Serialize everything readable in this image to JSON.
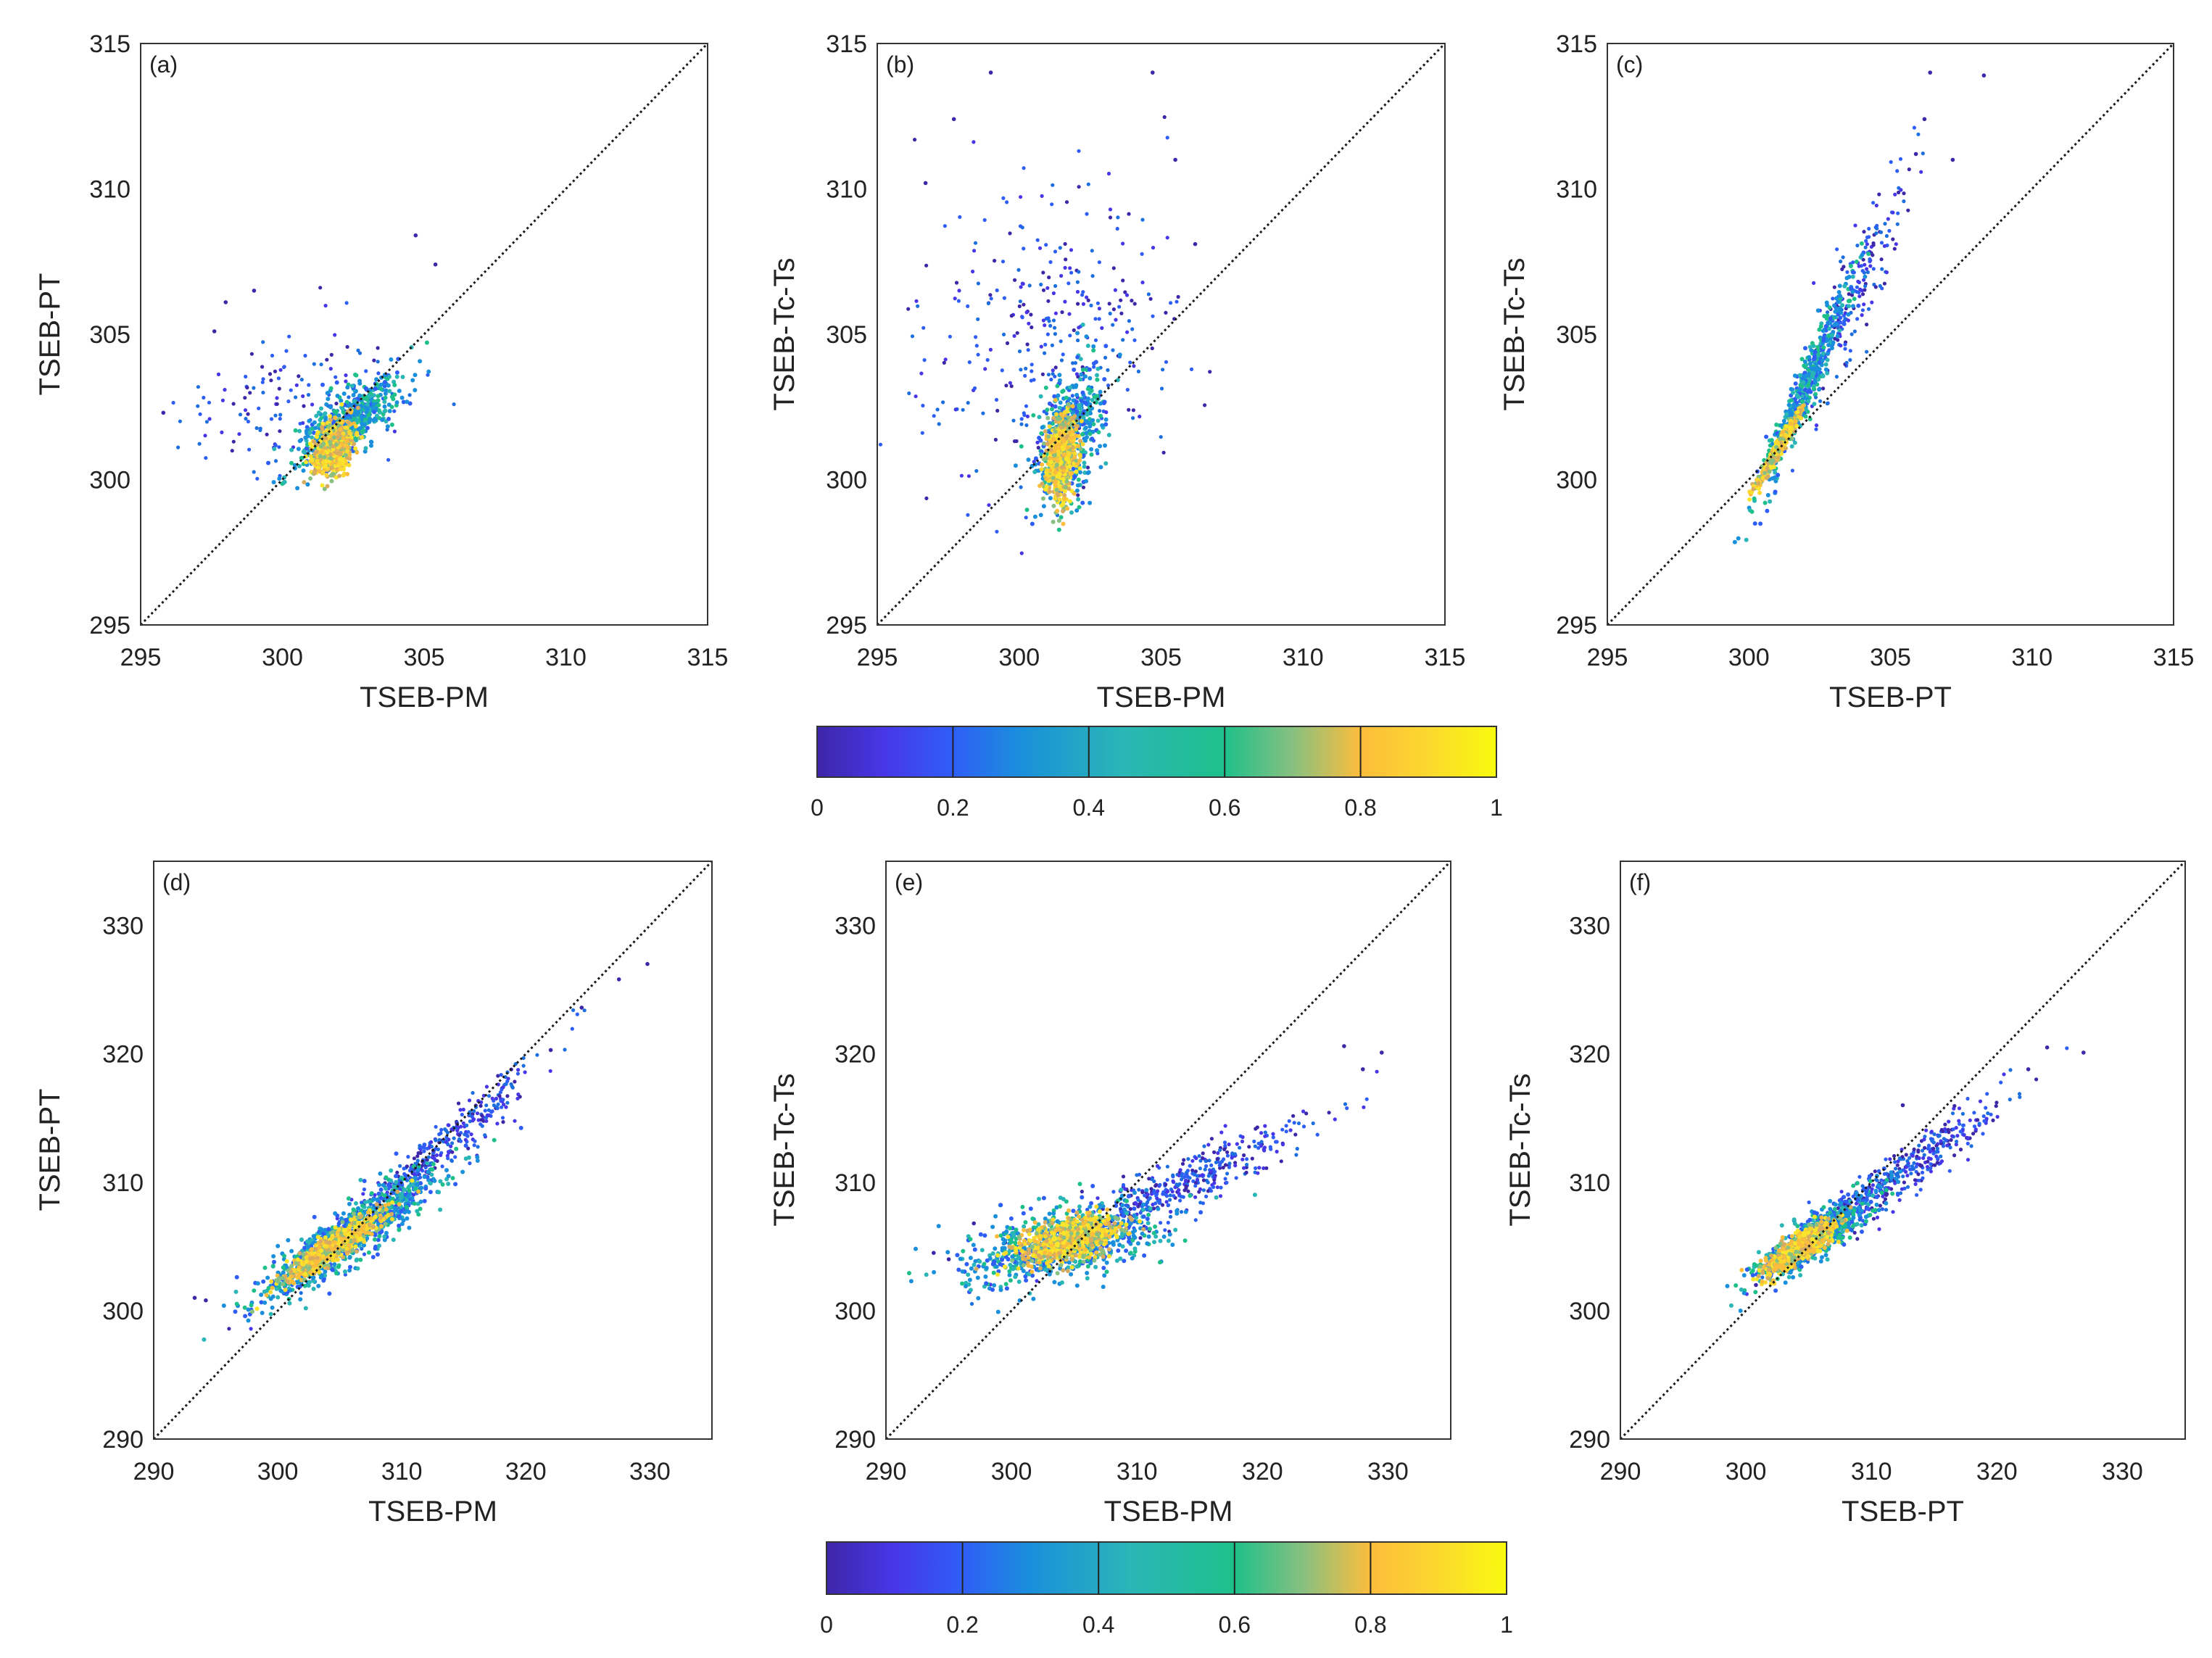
{
  "colors": {
    "colormap": [
      "#3e26a8",
      "#2f5ef7",
      "#1a8fdb",
      "#2ab6b6",
      "#1ec08a",
      "#87c080",
      "#d8ac60",
      "#fdbd3c",
      "#fbd82e",
      "#f9fb0e"
    ],
    "diagonal": "#1a1a1a",
    "axis": "#333333"
  },
  "colorbars": [
    {
      "ticks": [
        "0",
        "0.2",
        "0.4",
        "0.6",
        "0.8",
        "1"
      ],
      "range": [
        0,
        1
      ]
    },
    {
      "ticks": [
        "0",
        "0.2",
        "0.4",
        "0.6",
        "0.8",
        "1"
      ],
      "range": [
        0,
        1
      ]
    }
  ],
  "chart_data": [
    {
      "type": "scatter",
      "panel": "(a)",
      "xlabel": "TSEB-PM",
      "ylabel": "TSEB-PT",
      "xlim": [
        295,
        315
      ],
      "ylim": [
        295,
        315
      ],
      "xticks": [
        "295",
        "300",
        "305",
        "310",
        "315"
      ],
      "yticks": [
        "295",
        "300",
        "305",
        "310",
        "315"
      ],
      "one_to_one_line": true,
      "density_color_scale": [
        0,
        1
      ],
      "clusters": [
        {
          "center": [
            301.8,
            301.1
          ],
          "spread": [
            0.35,
            0.45
          ],
          "rho": 0.3,
          "n": 650,
          "density": "high"
        },
        {
          "center": [
            302.3,
            302.0
          ],
          "spread": [
            0.9,
            0.8
          ],
          "rho": 0.75,
          "n": 550,
          "density": "mid"
        },
        {
          "center": [
            300.5,
            302.8
          ],
          "spread": [
            2.0,
            1.3
          ],
          "rho": 0.2,
          "n": 140,
          "density": "low"
        }
      ],
      "outliers": [
        [
          304.7,
          308.4
        ],
        [
          305.4,
          307.4
        ],
        [
          299.0,
          306.5
        ],
        [
          298.0,
          306.1
        ],
        [
          295.8,
          302.3
        ],
        [
          297.6,
          305.1
        ]
      ]
    },
    {
      "type": "scatter",
      "panel": "(b)",
      "xlabel": "TSEB-PM",
      "ylabel": "TSEB-Tc-Ts",
      "xlim": [
        295,
        315
      ],
      "ylim": [
        295,
        315
      ],
      "xticks": [
        "295",
        "300",
        "305",
        "310",
        "315"
      ],
      "yticks": [
        "295",
        "300",
        "305",
        "310",
        "315"
      ],
      "one_to_one_line": true,
      "density_color_scale": [
        0,
        1
      ],
      "clusters": [
        {
          "center": [
            301.5,
            300.8
          ],
          "spread": [
            0.25,
            0.7
          ],
          "rho": 0.2,
          "n": 650,
          "density": "high"
        },
        {
          "center": [
            301.8,
            301.5
          ],
          "spread": [
            0.6,
            1.2
          ],
          "rho": 0.4,
          "n": 500,
          "density": "mid"
        },
        {
          "center": [
            301.0,
            304.8
          ],
          "spread": [
            2.3,
            2.6
          ],
          "rho": 0.1,
          "n": 320,
          "density": "low"
        }
      ],
      "outliers": [
        [
          299.0,
          314.0
        ],
        [
          304.7,
          314.0
        ],
        [
          297.7,
          312.4
        ],
        [
          296.7,
          310.2
        ],
        [
          305.5,
          311.0
        ],
        [
          306.2,
          308.1
        ]
      ]
    },
    {
      "type": "scatter",
      "panel": "(c)",
      "xlabel": "TSEB-PT",
      "ylabel": "TSEB-Tc-Ts",
      "xlim": [
        295,
        315
      ],
      "ylim": [
        295,
        315
      ],
      "xticks": [
        "295",
        "300",
        "305",
        "310",
        "315"
      ],
      "yticks": [
        "295",
        "300",
        "305",
        "310",
        "315"
      ],
      "one_to_one_line": true,
      "density_color_scale": [
        0,
        1
      ],
      "ridge": {
        "x_start": 300.3,
        "y_start": 299.6,
        "x_end": 306.3,
        "y_end": 312.4
      },
      "clusters": [
        {
          "center": [
            301.0,
            301.0
          ],
          "spread": [
            0.35,
            0.6
          ],
          "rho": 0.97,
          "n": 600,
          "density": "high"
        },
        {
          "center": [
            302.0,
            303.2
          ],
          "spread": [
            0.8,
            1.8
          ],
          "rho": 0.96,
          "n": 500,
          "density": "mid"
        },
        {
          "center": [
            303.8,
            306.5
          ],
          "spread": [
            1.0,
            2.2
          ],
          "rho": 0.9,
          "n": 200,
          "density": "low"
        }
      ],
      "outliers": [
        [
          306.4,
          314.0
        ],
        [
          308.3,
          313.9
        ],
        [
          306.2,
          312.4
        ],
        [
          307.2,
          311.0
        ],
        [
          305.9,
          311.2
        ]
      ]
    },
    {
      "type": "scatter",
      "panel": "(d)",
      "xlabel": "TSEB-PM",
      "ylabel": "TSEB-PT",
      "xlim": [
        290,
        335
      ],
      "ylim": [
        290,
        335
      ],
      "xticks": [
        "290",
        "300",
        "310",
        "320",
        "330"
      ],
      "yticks": [
        "290",
        "300",
        "310",
        "320",
        "330"
      ],
      "one_to_one_line": true,
      "density_color_scale": [
        0,
        1
      ],
      "clusters": [
        {
          "center": [
            304.5,
            305.0
          ],
          "spread": [
            2.0,
            1.4
          ],
          "rho": 0.92,
          "n": 700,
          "density": "high"
        },
        {
          "center": [
            306.0,
            306.0
          ],
          "spread": [
            3.6,
            2.6
          ],
          "rho": 0.9,
          "n": 800,
          "density": "mid"
        },
        {
          "center": [
            311.5,
            311.0
          ],
          "spread": [
            4.5,
            4.0
          ],
          "rho": 0.97,
          "n": 450,
          "density": "low"
        }
      ],
      "outliers": [
        [
          329.8,
          327.0
        ],
        [
          327.5,
          325.8
        ],
        [
          324.5,
          323.6
        ],
        [
          293.3,
          301.0
        ],
        [
          294.2,
          300.8
        ],
        [
          322.0,
          320.3
        ]
      ]
    },
    {
      "type": "scatter",
      "panel": "(e)",
      "xlabel": "TSEB-PM",
      "ylabel": "TSEB-Tc-Ts",
      "xlim": [
        290,
        335
      ],
      "ylim": [
        290,
        335
      ],
      "xticks": [
        "290",
        "300",
        "310",
        "320",
        "330"
      ],
      "yticks": [
        "290",
        "300",
        "310",
        "320",
        "330"
      ],
      "one_to_one_line": true,
      "density_color_scale": [
        0,
        1
      ],
      "clusters": [
        {
          "center": [
            304.5,
            305.5
          ],
          "spread": [
            2.0,
            0.9
          ],
          "rho": 0.5,
          "n": 700,
          "density": "high"
        },
        {
          "center": [
            304.0,
            305.3
          ],
          "spread": [
            4.0,
            1.6
          ],
          "rho": 0.5,
          "n": 700,
          "density": "mid"
        },
        {
          "center": [
            313.0,
            309.5
          ],
          "spread": [
            5.0,
            2.5
          ],
          "rho": 0.9,
          "n": 450,
          "density": "low"
        }
      ],
      "outliers": [
        [
          329.5,
          320.1
        ],
        [
          328.0,
          318.8
        ],
        [
          326.5,
          320.6
        ],
        [
          293.8,
          304.5
        ],
        [
          295.0,
          304.0
        ],
        [
          297.0,
          306.8
        ]
      ]
    },
    {
      "type": "scatter",
      "panel": "(f)",
      "xlabel": "TSEB-PT",
      "ylabel": "TSEB-Tc-Ts",
      "xlim": [
        290,
        335
      ],
      "ylim": [
        290,
        335
      ],
      "xticks": [
        "290",
        "300",
        "310",
        "320",
        "330"
      ],
      "yticks": [
        "290",
        "300",
        "310",
        "320",
        "330"
      ],
      "one_to_one_line": true,
      "density_color_scale": [
        0,
        1
      ],
      "clusters": [
        {
          "center": [
            304.5,
            305.0
          ],
          "spread": [
            1.4,
            1.0
          ],
          "rho": 0.85,
          "n": 700,
          "density": "high"
        },
        {
          "center": [
            305.5,
            305.8
          ],
          "spread": [
            2.4,
            1.8
          ],
          "rho": 0.88,
          "n": 700,
          "density": "mid"
        },
        {
          "center": [
            312.0,
            310.5
          ],
          "spread": [
            4.2,
            3.0
          ],
          "rho": 0.95,
          "n": 400,
          "density": "low"
        }
      ],
      "outliers": [
        [
          326.9,
          320.1
        ],
        [
          324.0,
          320.5
        ],
        [
          322.5,
          318.8
        ],
        [
          300.8,
          302.0
        ],
        [
          312.5,
          316.0
        ]
      ]
    }
  ]
}
